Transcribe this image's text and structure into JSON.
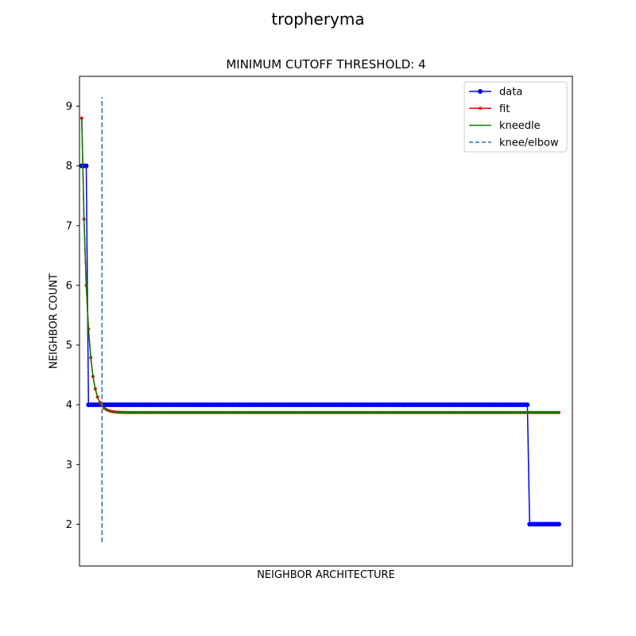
{
  "chart_data": {
    "type": "line",
    "suptitle": "tropheryma",
    "title": "MINIMUM CUTOFF THRESHOLD: 4",
    "xlabel": "NEIGHBOR ARCHITECTURE",
    "ylabel": "NEIGHBOR COUNT",
    "x_ticks_visible": false,
    "xlim": [
      -1,
      218
    ],
    "ylim": [
      1.3,
      9.5
    ],
    "yticks": [
      2,
      3,
      4,
      5,
      6,
      7,
      8,
      9
    ],
    "n_points": 213,
    "grid": false,
    "legend": {
      "position": "top-right",
      "entries": [
        "data",
        "fit",
        "kneedle",
        "knee/elbow"
      ]
    },
    "colors": {
      "data": "#0000ff",
      "fit": "#ff0000",
      "kneedle": "#008000",
      "knee": "#1f77b4"
    },
    "series": [
      {
        "name": "data",
        "marker": "circle",
        "segments": [
          {
            "x_from": 0,
            "x_to": 2,
            "y": 8
          },
          {
            "x_from": 3,
            "x_to": 198,
            "y": 4
          },
          {
            "x_from": 199,
            "x_to": 212,
            "y": 2
          }
        ]
      },
      {
        "name": "fit",
        "marker": "dot",
        "model": "y = 3.87 + 4.93 * exp(-0.42 * x)"
      },
      {
        "name": "kneedle",
        "marker": "dot",
        "model": "y = 3.87 + 4.93 * exp(-0.42 * x)"
      },
      {
        "name": "knee/elbow",
        "type": "vline",
        "x": 9,
        "y_from": 1.7,
        "y_to": 9.15,
        "linestyle": "dashed"
      }
    ]
  }
}
